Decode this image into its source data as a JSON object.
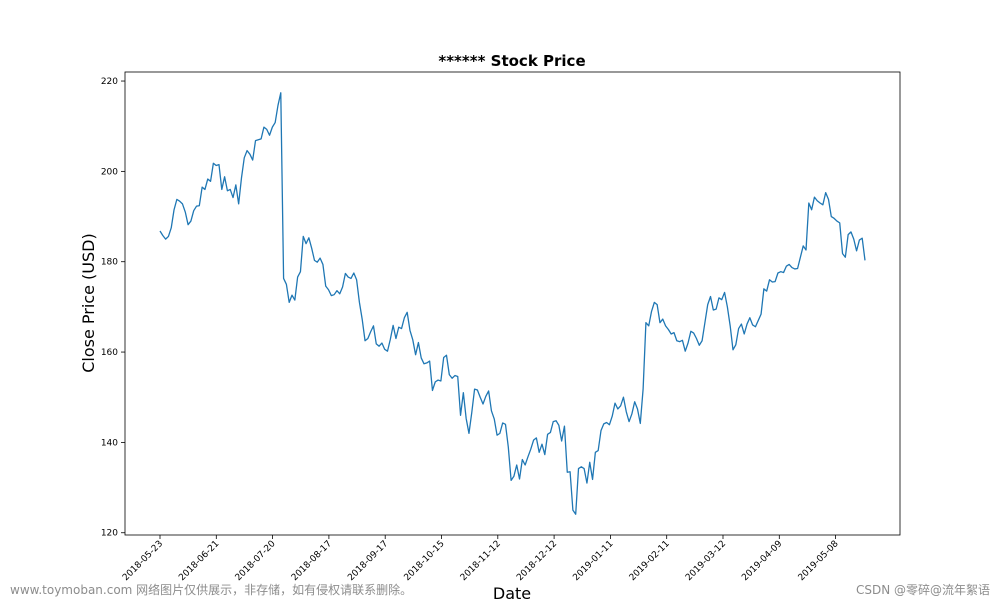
{
  "chart_data": {
    "type": "line",
    "title": "****** Stock Price",
    "xlabel": "Date",
    "ylabel": "Close Price (USD)",
    "ylim": [
      119.5,
      222
    ],
    "yticks": [
      120,
      140,
      160,
      180,
      200,
      220
    ],
    "xticks": [
      "2018-05-23",
      "2018-06-21",
      "2018-07-20",
      "2018-08-17",
      "2018-09-17",
      "2018-10-15",
      "2018-11-12",
      "2018-12-12",
      "2019-01-11",
      "2019-02-11",
      "2019-03-12",
      "2019-04-09",
      "2019-05-08"
    ],
    "grid": false,
    "line_color": "#1f77b4",
    "series": [
      {
        "values": [
          186.8,
          185.8,
          185.0,
          185.6,
          187.5,
          191.5,
          193.8,
          193.4,
          192.8,
          191.0,
          188.2,
          189.0,
          191.3,
          192.3,
          192.4,
          196.5,
          196.0,
          198.3,
          197.8,
          201.8,
          201.3,
          201.5,
          196.0,
          198.8,
          195.7,
          196.0,
          194.2,
          197.0,
          192.8,
          198.5,
          203.0,
          204.6,
          203.8,
          202.5,
          206.8,
          207.0,
          207.2,
          209.8,
          209.3,
          208.0,
          209.8,
          210.8,
          214.6,
          217.4,
          176.3,
          175.0,
          171.0,
          172.6,
          171.5,
          176.6,
          177.8,
          185.6,
          184.0,
          185.3,
          183.0,
          180.3,
          179.9,
          180.8,
          179.4,
          174.6,
          173.8,
          172.5,
          172.7,
          173.6,
          172.9,
          174.4,
          177.4,
          176.6,
          176.3,
          177.5,
          176.0,
          171.0,
          167.2,
          162.5,
          163.0,
          164.5,
          165.8,
          161.8,
          161.3,
          162.0,
          160.6,
          160.2,
          162.8,
          165.9,
          163.0,
          165.5,
          165.2,
          167.6,
          168.8,
          164.8,
          162.7,
          159.4,
          162.1,
          158.7,
          157.4,
          157.6,
          158.0,
          151.5,
          153.4,
          153.8,
          153.6,
          158.8,
          159.3,
          155.0,
          154.2,
          154.8,
          154.6,
          146.0,
          151.0,
          145.3,
          142.0,
          146.6,
          151.8,
          151.6,
          150.0,
          148.5,
          150.2,
          151.4,
          147.0,
          145.2,
          141.6,
          142.0,
          144.3,
          144.0,
          139.0,
          131.6,
          132.5,
          135.0,
          131.9,
          136.2,
          135.0,
          136.8,
          138.5,
          140.5,
          141.0,
          137.8,
          139.6,
          137.3,
          141.8,
          142.2,
          144.6,
          144.8,
          143.8,
          140.3,
          143.6,
          133.4,
          133.5,
          125.0,
          124.1,
          134.2,
          134.6,
          134.2,
          131.0,
          135.6,
          131.8,
          137.8,
          138.2,
          142.6,
          144.1,
          144.4,
          143.9,
          145.8,
          148.7,
          147.4,
          148.1,
          150.0,
          146.8,
          144.6,
          146.3,
          149.0,
          147.4,
          144.2,
          151.8,
          166.5,
          165.8,
          169.0,
          171.0,
          170.5,
          166.5,
          167.3,
          165.8,
          165.0,
          164.0,
          164.3,
          162.5,
          162.3,
          162.6,
          160.2,
          162.0,
          164.6,
          164.2,
          163.0,
          161.5,
          162.5,
          166.5,
          170.5,
          172.3,
          169.3,
          169.5,
          172.0,
          171.6,
          173.2,
          170.0,
          165.8,
          160.5,
          161.6,
          165.2,
          166.2,
          164.0,
          166.2,
          167.6,
          166.0,
          165.6,
          167.0,
          168.4,
          174.0,
          173.5,
          176.0,
          175.5,
          175.6,
          177.5,
          177.8,
          177.6,
          179.0,
          179.4,
          178.7,
          178.4,
          178.5,
          181.0,
          183.5,
          182.6,
          193.0,
          191.5,
          194.3,
          193.5,
          193.0,
          192.6,
          195.3,
          193.8,
          190.0,
          189.6,
          189.0,
          188.6,
          181.8,
          181.0,
          186.0,
          186.6,
          185.0,
          182.4,
          184.8,
          185.2,
          180.3
        ]
      }
    ]
  },
  "watermarks": {
    "left": "www.toymoban.com 网络图片仅供展示，非存储，如有侵权请联系删除。",
    "right": "CSDN @零碎@流年絮语"
  }
}
